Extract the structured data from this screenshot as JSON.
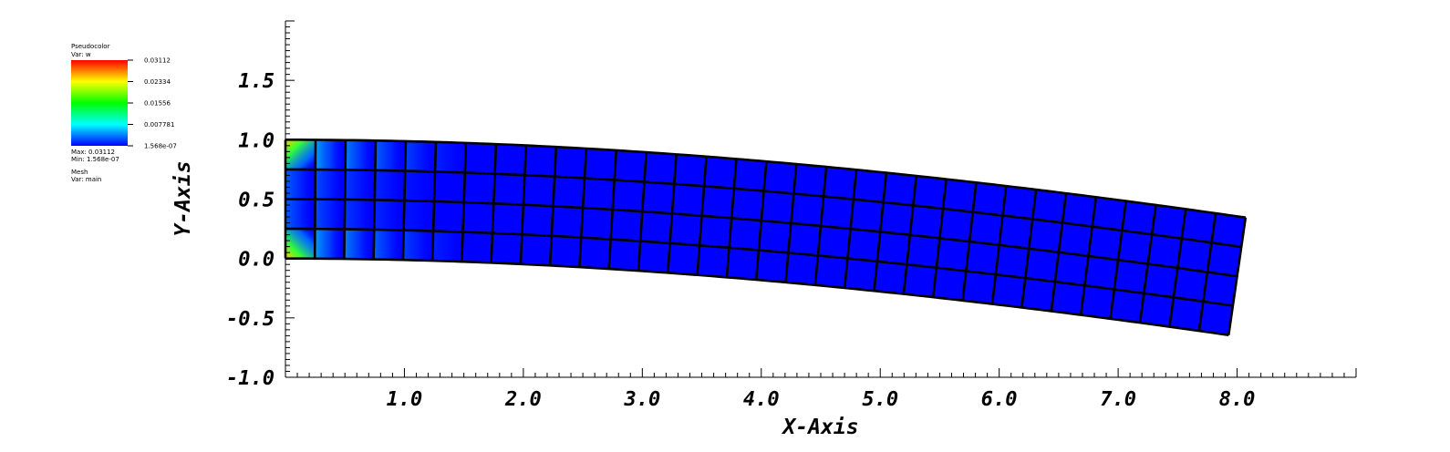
{
  "legend": {
    "plot_name": "Pseudocolor",
    "var_label": "Var: w",
    "tick_labels": [
      "0.03112",
      "0.02334",
      "0.01556",
      "0.007781",
      "1.568e-07"
    ],
    "max_label": "Max: 0.03112",
    "min_label": "Min: 1.568e-07",
    "mesh_name": "Mesh",
    "mesh_var": "Var: main",
    "colormap": [
      "#ff0000",
      "#ffff00",
      "#00ff00",
      "#00ffff",
      "#0000ff"
    ]
  },
  "chart_data": {
    "type": "heatmap",
    "title": "",
    "xlabel": "X-Axis",
    "ylabel": "Y-Axis",
    "xlim": [
      0,
      9.0
    ],
    "ylim": [
      -1.0,
      2.0
    ],
    "x_ticks": [
      "1.0",
      "2.0",
      "3.0",
      "4.0",
      "5.0",
      "6.0",
      "7.0",
      "8.0"
    ],
    "y_ticks": [
      "-1.0",
      "-0.5",
      "0.0",
      "0.5",
      "1.0",
      "1.5"
    ],
    "grid": false,
    "mesh": {
      "columns": 32,
      "rows": 4,
      "undeformed_length": 8.0,
      "undeformed_height": 1.0,
      "tip_deflection": -0.65,
      "tip_rotation_deg": -8.2
    },
    "variable": "w",
    "value_range": [
      1.568e-07,
      0.03112
    ],
    "background_color": "#0000ff"
  }
}
